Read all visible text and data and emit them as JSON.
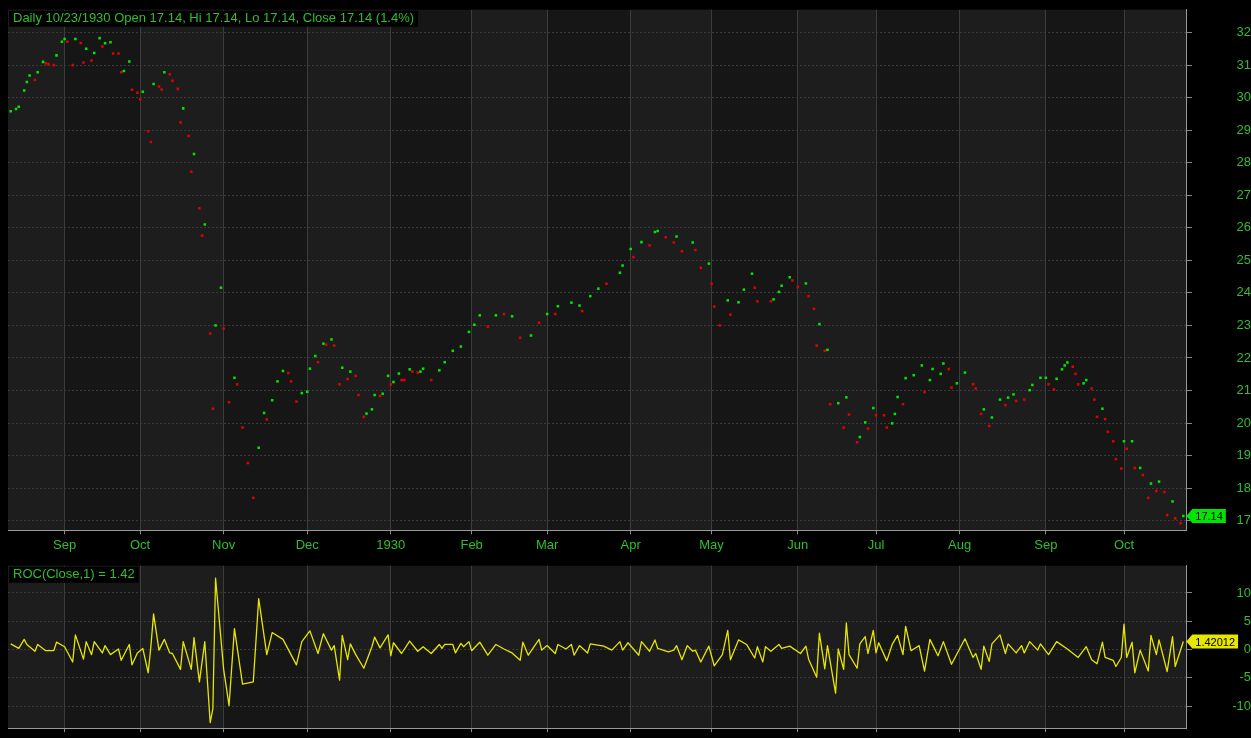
{
  "chart_data": [
    {
      "type": "scatter",
      "title": "Daily 10/23/1930 Open 17.14, Hi 17.14, Lo 17.14, Close 17.14 (1.4%)",
      "series": [
        {
          "color": "#00e600",
          "x": [
            "1929-08-14",
            "1929-08-16",
            "1929-08-17",
            "1929-08-19",
            "1929-08-20",
            "1929-08-21",
            "1929-08-24",
            "1929-08-26",
            "1929-08-31",
            "1929-09-02",
            "1929-09-03",
            "1929-09-07",
            "1929-09-11",
            "1929-09-14",
            "1929-09-16",
            "1929-09-18",
            "1929-09-20",
            "1929-09-25",
            "1929-09-27",
            "1929-10-02",
            "1929-10-06",
            "1929-10-10",
            "1929-10-17",
            "1929-10-21",
            "1929-10-25",
            "1929-10-29",
            "1929-10-31",
            "1929-11-05",
            "1929-11-14",
            "1929-11-16",
            "1929-11-19",
            "1929-11-21",
            "1929-11-23",
            "1929-11-30",
            "1929-12-02",
            "1929-12-03",
            "1929-12-05",
            "1929-12-08",
            "1929-12-11",
            "1929-12-15",
            "1929-12-18",
            "1929-12-24",
            "1929-12-26",
            "1929-12-27",
            "1929-12-30",
            "1930-01-01",
            "1930-01-03",
            "1930-01-05",
            "1930-01-09",
            "1930-01-13",
            "1930-01-14",
            "1930-01-20",
            "1930-01-22",
            "1930-01-25",
            "1930-01-28",
            "1930-01-31",
            "1930-02-02",
            "1930-02-04",
            "1930-02-10",
            "1930-02-16",
            "1930-02-23",
            "1930-03-01",
            "1930-03-05",
            "1930-03-10",
            "1930-03-13",
            "1930-03-17",
            "1930-03-20",
            "1930-03-28",
            "1930-03-29",
            "1930-04-01",
            "1930-04-05",
            "1930-04-10",
            "1930-04-11",
            "1930-04-18",
            "1930-04-24",
            "1930-04-30",
            "1930-05-07",
            "1930-05-11",
            "1930-05-13",
            "1930-05-16",
            "1930-05-24",
            "1930-05-26",
            "1930-05-27",
            "1930-05-30",
            "1930-06-05",
            "1930-06-10",
            "1930-06-13",
            "1930-06-17",
            "1930-06-20",
            "1930-06-25",
            "1930-06-27",
            "1930-06-30",
            "1930-07-07",
            "1930-07-08",
            "1930-07-09",
            "1930-07-12",
            "1930-07-15",
            "1930-07-18",
            "1930-07-21",
            "1930-07-22",
            "1930-07-25",
            "1930-07-26",
            "1930-07-31",
            "1930-08-03",
            "1930-08-10",
            "1930-08-13",
            "1930-08-16",
            "1930-08-19",
            "1930-08-21",
            "1930-08-27",
            "1930-08-28",
            "1930-08-31",
            "1930-09-02",
            "1930-09-06",
            "1930-09-08",
            "1930-09-09",
            "1930-09-10",
            "1930-09-16",
            "1930-09-17",
            "1930-09-23",
            "1930-10-01",
            "1930-10-04",
            "1930-10-07",
            "1930-10-11",
            "1930-10-14",
            "1930-10-19",
            "1930-10-23"
          ],
          "values": [
            29.58,
            29.65,
            29.72,
            30.22,
            30.48,
            30.68,
            30.78,
            31.1,
            31.3,
            31.72,
            31.8,
            31.8,
            31.5,
            31.37,
            31.83,
            31.67,
            31.7,
            30.82,
            31.11,
            30.18,
            30.42,
            30.78,
            29.67,
            28.27,
            26.1,
            23.0,
            24.16,
            21.39,
            19.24,
            20.31,
            20.7,
            21.28,
            21.6,
            20.92,
            20.96,
            21.67,
            22.06,
            22.44,
            22.57,
            21.7,
            21.58,
            20.29,
            20.42,
            20.86,
            20.9,
            21.45,
            21.26,
            21.52,
            21.65,
            21.58,
            21.67,
            21.62,
            21.87,
            22.22,
            22.35,
            22.8,
            23.02,
            23.31,
            23.31,
            23.28,
            22.69,
            23.35,
            23.59,
            23.7,
            23.61,
            23.9,
            24.13,
            24.62,
            24.84,
            25.35,
            25.56,
            25.87,
            25.9,
            25.73,
            25.55,
            24.9,
            23.77,
            23.71,
            24.1,
            24.59,
            23.8,
            24.03,
            24.22,
            24.48,
            24.29,
            23.04,
            22.25,
            20.61,
            20.79,
            19.57,
            20.02,
            20.46,
            19.99,
            20.28,
            20.8,
            21.38,
            21.47,
            21.77,
            21.32,
            21.66,
            21.51,
            21.83,
            21.22,
            21.55,
            20.42,
            20.17,
            20.72,
            20.78,
            20.88,
            21.01,
            21.17,
            21.39,
            21.39,
            21.36,
            21.65,
            21.77,
            21.86,
            21.22,
            21.32,
            20.44,
            19.44,
            19.44,
            18.62,
            18.14,
            18.2,
            17.59,
            17.14
          ]
        },
        {
          "color": "#e00000",
          "x": [
            "1929-08-23",
            "1929-08-27",
            "1929-08-28",
            "1929-08-30",
            "1929-09-04",
            "1929-09-06",
            "1929-09-09",
            "1929-09-10",
            "1929-09-13",
            "1929-09-17",
            "1929-09-21",
            "1929-09-23",
            "1929-09-24",
            "1929-09-28",
            "1929-09-30",
            "1929-10-01",
            "1929-10-04",
            "1929-10-05",
            "1929-10-08",
            "1929-10-09",
            "1929-10-12",
            "1929-10-13",
            "1929-10-15",
            "1929-10-16",
            "1929-10-19",
            "1929-10-20",
            "1929-10-23",
            "1929-10-24",
            "1929-10-27",
            "1929-10-28",
            "1929-11-01",
            "1929-11-03",
            "1929-11-06",
            "1929-11-08",
            "1929-11-10",
            "1929-11-12",
            "1929-11-17",
            "1929-11-25",
            "1929-11-26",
            "1929-11-28",
            "1929-12-06",
            "1929-12-09",
            "1929-12-12",
            "1929-12-14",
            "1929-12-17",
            "1929-12-20",
            "1929-12-21",
            "1929-12-23",
            "1929-12-29",
            "1930-01-02",
            "1930-01-06",
            "1930-01-07",
            "1930-01-10",
            "1930-01-12",
            "1930-01-17",
            "1930-02-07",
            "1930-02-13",
            "1930-02-19",
            "1930-02-26",
            "1930-03-04",
            "1930-03-14",
            "1930-03-23",
            "1930-04-02",
            "1930-04-08",
            "1930-04-14",
            "1930-04-17",
            "1930-04-20",
            "1930-04-25",
            "1930-04-27",
            "1930-05-01",
            "1930-05-02",
            "1930-05-04",
            "1930-05-08",
            "1930-05-17",
            "1930-05-18",
            "1930-05-23",
            "1930-05-31",
            "1930-06-02",
            "1930-06-06",
            "1930-06-08",
            "1930-06-09",
            "1930-06-12",
            "1930-06-14",
            "1930-06-19",
            "1930-06-21",
            "1930-06-24",
            "1930-06-28",
            "1930-07-01",
            "1930-07-04",
            "1930-07-05",
            "1930-07-11",
            "1930-07-19",
            "1930-07-28",
            "1930-07-29",
            "1930-08-06",
            "1930-08-07",
            "1930-08-09",
            "1930-08-12",
            "1930-08-18",
            "1930-08-22",
            "1930-08-25",
            "1930-09-03",
            "1930-09-05",
            "1930-09-12",
            "1930-09-13",
            "1930-09-14",
            "1930-09-19",
            "1930-09-20",
            "1930-09-21",
            "1930-09-24",
            "1930-09-25",
            "1930-09-27",
            "1930-09-28",
            "1930-09-30",
            "1930-10-02",
            "1930-10-05",
            "1930-10-08",
            "1930-10-10",
            "1930-10-13",
            "1930-10-16",
            "1930-10-17",
            "1930-10-20",
            "1930-10-22"
          ],
          "values": [
            30.55,
            31.06,
            31.03,
            31.0,
            31.72,
            31.0,
            31.68,
            31.08,
            31.14,
            31.57,
            31.36,
            31.36,
            30.78,
            30.24,
            30.15,
            29.95,
            28.97,
            28.64,
            30.34,
            30.25,
            30.72,
            30.52,
            30.27,
            29.24,
            28.82,
            27.72,
            26.6,
            25.76,
            22.75,
            20.44,
            22.9,
            20.64,
            21.19,
            19.86,
            18.77,
            17.7,
            20.11,
            21.54,
            21.28,
            20.66,
            21.87,
            22.41,
            22.38,
            21.19,
            21.35,
            21.45,
            20.86,
            20.19,
            20.83,
            21.19,
            21.32,
            21.32,
            21.58,
            21.55,
            21.32,
            22.96,
            23.35,
            22.62,
            23.08,
            23.35,
            23.44,
            24.28,
            25.1,
            25.46,
            25.71,
            25.55,
            25.28,
            25.32,
            24.77,
            24.28,
            23.58,
            23.0,
            23.33,
            24.16,
            23.74,
            23.74,
            24.38,
            24.18,
            23.9,
            23.51,
            22.38,
            22.22,
            20.58,
            19.86,
            20.26,
            19.41,
            19.83,
            20.24,
            20.24,
            19.86,
            20.58,
            20.95,
            21.66,
            21.09,
            21.19,
            21.06,
            20.28,
            19.91,
            20.55,
            20.68,
            20.72,
            21.19,
            21.03,
            21.73,
            21.51,
            21.19,
            21.06,
            20.72,
            20.19,
            20.12,
            19.73,
            19.44,
            18.89,
            18.6,
            19.21,
            18.62,
            18.4,
            17.7,
            17.91,
            17.88,
            17.17,
            17.07,
            16.92
          ]
        }
      ],
      "xlim": [
        "1929-08-13",
        "1930-10-24"
      ],
      "xticks": [
        {
          "value": "1929-09-03",
          "label": "Sep"
        },
        {
          "value": "1929-10-01",
          "label": "Oct"
        },
        {
          "value": "1929-11-01",
          "label": "Nov"
        },
        {
          "value": "1929-12-02",
          "label": "Dec"
        },
        {
          "value": "1930-01-02",
          "label": "1930"
        },
        {
          "value": "1930-02-01",
          "label": "Feb"
        },
        {
          "value": "1930-03-01",
          "label": "Mar"
        },
        {
          "value": "1930-04-01",
          "label": "Apr"
        },
        {
          "value": "1930-05-01",
          "label": "May"
        },
        {
          "value": "1930-06-02",
          "label": "Jun"
        },
        {
          "value": "1930-07-01",
          "label": "Jul"
        },
        {
          "value": "1930-08-01",
          "label": "Aug"
        },
        {
          "value": "1930-09-02",
          "label": "Sep"
        },
        {
          "value": "1930-10-01",
          "label": "Oct"
        }
      ],
      "ylim": [
        16.7,
        32.7
      ],
      "yticks": [
        17,
        18,
        19,
        20,
        21,
        22,
        23,
        24,
        25,
        26,
        27,
        28,
        29,
        30,
        31,
        32
      ],
      "grid": true,
      "legend": false,
      "marker": "square",
      "annotations": [
        {
          "text": "17.14",
          "x": "1930-10-23",
          "y": 17.14
        }
      ]
    },
    {
      "type": "line",
      "title": "ROC(Close,1) = 1.42",
      "series": [
        {
          "color": "#e6e600",
          "x": [
            "1929-08-14",
            "1929-08-17",
            "1929-08-19",
            "1929-08-20",
            "1929-08-23",
            "1929-08-24",
            "1929-08-27",
            "1929-08-30",
            "1929-08-31",
            "1929-09-03",
            "1929-09-06",
            "1929-09-07",
            "1929-09-10",
            "1929-09-11",
            "1929-09-13",
            "1929-09-14",
            "1929-09-17",
            "1929-09-18",
            "1929-09-20",
            "1929-09-23",
            "1929-09-24",
            "1929-09-27",
            "1929-09-28",
            "1929-09-30",
            "1929-10-02",
            "1929-10-04",
            "1929-10-05",
            "1929-10-06",
            "1929-10-08",
            "1929-10-10",
            "1929-10-12",
            "1929-10-13",
            "1929-10-16",
            "1929-10-17",
            "1929-10-20",
            "1929-10-21",
            "1929-10-23",
            "1929-10-25",
            "1929-10-27",
            "1929-10-28",
            "1929-10-29",
            "1929-11-01",
            "1929-11-03",
            "1929-11-05",
            "1929-11-08",
            "1929-11-12",
            "1929-11-14",
            "1929-11-17",
            "1929-11-19",
            "1929-11-23",
            "1929-11-28",
            "1929-11-30",
            "1929-12-03",
            "1929-12-06",
            "1929-12-08",
            "1929-12-11",
            "1929-12-12",
            "1929-12-14",
            "1929-12-15",
            "1929-12-17",
            "1929-12-18",
            "1929-12-20",
            "1929-12-23",
            "1929-12-26",
            "1929-12-27",
            "1929-12-29",
            "1930-01-01",
            "1930-01-02",
            "1930-01-03",
            "1930-01-06",
            "1930-01-09",
            "1930-01-12",
            "1930-01-14",
            "1930-01-17",
            "1930-01-20",
            "1930-01-21",
            "1930-01-22",
            "1930-01-25",
            "1930-01-26",
            "1930-01-28",
            "1930-01-29",
            "1930-01-31",
            "1930-02-01",
            "1930-02-04",
            "1930-02-07",
            "1930-02-10",
            "1930-02-13",
            "1930-02-16",
            "1930-02-19",
            "1930-02-20",
            "1930-02-22",
            "1930-02-26",
            "1930-02-27",
            "1930-03-01",
            "1930-03-04",
            "1930-03-05",
            "1930-03-08",
            "1930-03-10",
            "1930-03-11",
            "1930-03-13",
            "1930-03-16",
            "1930-03-17",
            "1930-03-22",
            "1930-03-25",
            "1930-03-28",
            "1930-03-29",
            "1930-03-31",
            "1930-04-04",
            "1930-04-05",
            "1930-04-08",
            "1930-04-10",
            "1930-04-11",
            "1930-04-15",
            "1930-04-17",
            "1930-04-18",
            "1930-04-20",
            "1930-04-22",
            "1930-04-24",
            "1930-04-25",
            "1930-04-27",
            "1930-04-30",
            "1930-05-02",
            "1930-05-05",
            "1930-05-07",
            "1930-05-08",
            "1930-05-11",
            "1930-05-14",
            "1930-05-17",
            "1930-05-18",
            "1930-05-20",
            "1930-05-21",
            "1930-05-23",
            "1930-05-26",
            "1930-05-27",
            "1930-05-30",
            "1930-06-03",
            "1930-06-05",
            "1930-06-06",
            "1930-06-09",
            "1930-06-10",
            "1930-06-12",
            "1930-06-13",
            "1930-06-16",
            "1930-06-17",
            "1930-06-19",
            "1930-06-20",
            "1930-06-21",
            "1930-06-24",
            "1930-06-25",
            "1930-06-27",
            "1930-06-28",
            "1930-06-30",
            "1930-07-01",
            "1930-07-02",
            "1930-07-05",
            "1930-07-07",
            "1930-07-09",
            "1930-07-11",
            "1930-07-12",
            "1930-07-14",
            "1930-07-17",
            "1930-07-19",
            "1930-07-21",
            "1930-07-24",
            "1930-07-26",
            "1930-07-29",
            "1930-08-03",
            "1930-08-06",
            "1930-08-07",
            "1930-08-09",
            "1930-08-10",
            "1930-08-12",
            "1930-08-13",
            "1930-08-16",
            "1930-08-18",
            "1930-08-19",
            "1930-08-22",
            "1930-08-24",
            "1930-08-25",
            "1930-08-27",
            "1930-08-30",
            "1930-08-31",
            "1930-09-03",
            "1930-09-06",
            "1930-09-10",
            "1930-09-14",
            "1930-09-17",
            "1930-09-19",
            "1930-09-21",
            "1930-09-23",
            "1930-09-24",
            "1930-09-27",
            "1930-09-28",
            "1930-09-30",
            "1930-10-01",
            "1930-10-02",
            "1930-10-04",
            "1930-10-05",
            "1930-10-07",
            "1930-10-10",
            "1930-10-11",
            "1930-10-13",
            "1930-10-14",
            "1930-10-17",
            "1930-10-19",
            "1930-10-20",
            "1930-10-23"
          ],
          "values": [
            1.0,
            0.2,
            1.8,
            0.9,
            -0.3,
            0.9,
            -0.2,
            -0.2,
            1.3,
            0.5,
            -2.2,
            2.6,
            -1.7,
            1.4,
            -0.9,
            1.4,
            -0.6,
            0.7,
            -0.9,
            0.1,
            -1.9,
            0.9,
            -2.7,
            -0.6,
            0.2,
            -4.1,
            0.5,
            6.3,
            -0.1,
            1.8,
            -0.6,
            -0.7,
            -3.5,
            1.4,
            -3.5,
            2.1,
            -5.7,
            1.4,
            -12.9,
            -10.5,
            12.6,
            -3.5,
            -9.9,
            3.7,
            -6.1,
            -5.7,
            9.0,
            -0.9,
            3.0,
            1.8,
            -2.7,
            1.4,
            3.3,
            -0.7,
            2.8,
            -0.1,
            0.7,
            -5.4,
            2.5,
            -1.8,
            1.0,
            -0.9,
            -3.3,
            0.5,
            2.2,
            0.3,
            2.6,
            -1.1,
            1.2,
            -0.7,
            1.5,
            -0.3,
            0.5,
            -0.7,
            0.9,
            0.2,
            0.9,
            0.9,
            -0.6,
            1.1,
            0.5,
            1.4,
            -0.2,
            1.3,
            -1.0,
            0.9,
            0.1,
            -0.6,
            -1.9,
            1.3,
            -1.0,
            1.8,
            -0.1,
            0.7,
            -0.7,
            0.9,
            0.1,
            0.9,
            -1.0,
            0.7,
            -0.6,
            1.0,
            0.6,
            -0.1,
            1.4,
            -0.1,
            1.2,
            -1.0,
            1.4,
            -0.3,
            1.7,
            0.2,
            -0.4,
            -0.1,
            0.7,
            -1.8,
            0.7,
            -0.3,
            -0.1,
            -2.2,
            0.6,
            -2.9,
            -0.9,
            3.4,
            -1.8,
            1.7,
            0.9,
            -1.5,
            0.5,
            -2.2,
            0.5,
            -0.3,
            0.9,
            0.2,
            0.6,
            -0.7,
            0.6,
            -1.7,
            -4.9,
            2.9,
            -3.4,
            0.7,
            -7.7,
            0.1,
            -3.5,
            4.7,
            -0.9,
            -3.3,
            1.0,
            2.3,
            -0.7,
            3.4,
            -0.6,
            1.2,
            -2.0,
            0.9,
            2.5,
            -0.9,
            4.1,
            -0.2,
            0.7,
            -3.8,
            1.8,
            -1.1,
            1.4,
            -2.6,
            1.9,
            -1.4,
            -0.7,
            -3.5,
            0.6,
            -2.1,
            1.0,
            2.6,
            -0.7,
            1.0,
            -0.6,
            0.7,
            -0.6,
            1.4,
            -0.1,
            1.0,
            -0.9,
            1.4,
            0.1,
            -1.4,
            0.5,
            -1.8,
            -2.5,
            1.3,
            -1.4,
            -1.9,
            -3.0,
            -1.4,
            4.5,
            -1.4,
            1.3,
            -4.1,
            -0.1,
            -3.8,
            2.5,
            -0.9,
            1.7,
            -3.9,
            2.3,
            -3.0,
            1.42
          ]
        }
      ],
      "xlim": [
        "1929-08-13",
        "1930-10-24"
      ],
      "xticks": [
        {
          "value": "1929-09-03",
          "label": null
        },
        {
          "value": "1929-10-01",
          "label": null
        },
        {
          "value": "1929-11-01",
          "label": null
        },
        {
          "value": "1929-12-02",
          "label": null
        },
        {
          "value": "1930-01-02",
          "label": null
        },
        {
          "value": "1930-02-01",
          "label": null
        },
        {
          "value": "1930-03-01",
          "label": null
        },
        {
          "value": "1930-04-01",
          "label": null
        },
        {
          "value": "1930-05-01",
          "label": null
        },
        {
          "value": "1930-06-02",
          "label": null
        },
        {
          "value": "1930-07-01",
          "label": null
        },
        {
          "value": "1930-08-01",
          "label": null
        },
        {
          "value": "1930-09-02",
          "label": null
        },
        {
          "value": "1930-10-01",
          "label": null
        }
      ],
      "ylim": [
        -13.9,
        14.8
      ],
      "yticks": [
        -10,
        -5,
        0,
        5,
        10
      ],
      "tick_labels": "y",
      "grid": true,
      "legend": false,
      "line_style": "solid",
      "annotations": [
        {
          "text": "1.42012",
          "x": "1930-10-23",
          "y": 1.42012
        }
      ]
    }
  ]
}
